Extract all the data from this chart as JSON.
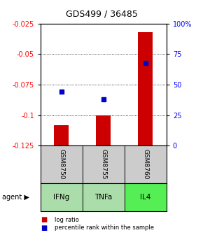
{
  "title": "GDS499 / 36485",
  "samples": [
    "GSM8750",
    "GSM8755",
    "GSM8760"
  ],
  "agents": [
    "IFNg",
    "TNFa",
    "IL4"
  ],
  "log_ratios": [
    -0.108,
    -0.1,
    -0.032
  ],
  "percentile_ranks": [
    44,
    38,
    68
  ],
  "ylim_left": [
    -0.125,
    -0.025
  ],
  "yticks_left": [
    -0.125,
    -0.1,
    -0.075,
    -0.05,
    -0.025
  ],
  "ytick_labels_left": [
    "-0.125",
    "-0.1",
    "-0.075",
    "-0.05",
    "-0.025"
  ],
  "ylim_right": [
    0,
    100
  ],
  "yticks_right": [
    0,
    25,
    50,
    75,
    100
  ],
  "ytick_labels_right": [
    "0",
    "25",
    "50",
    "75",
    "100%"
  ],
  "bar_color": "#cc0000",
  "square_color": "#0000cc",
  "sample_bg": "#cccccc",
  "agent_colors": [
    "#aaddaa",
    "#aaddaa",
    "#55ee55"
  ],
  "legend_items": [
    "log ratio",
    "percentile rank within the sample"
  ],
  "legend_colors": [
    "#cc0000",
    "#0000cc"
  ],
  "bar_width": 0.35
}
